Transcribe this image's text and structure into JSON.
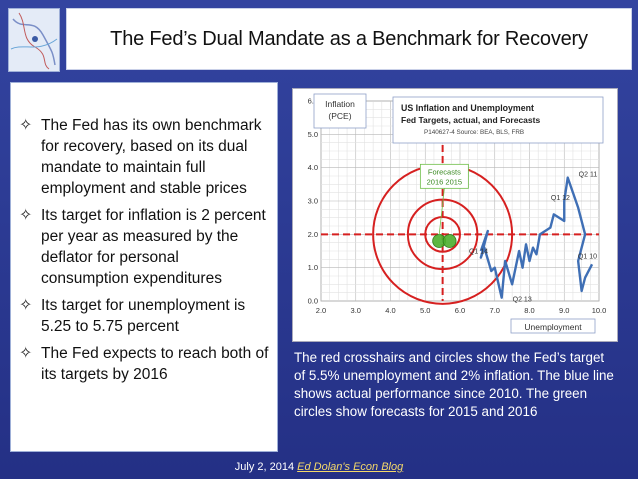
{
  "slide": {
    "title": "The Fed’s Dual Mandate as a Benchmark for Recovery",
    "bullets": [
      "The Fed has its own benchmark for recovery, based on its dual mandate to maintain full employment and stable prices",
      "Its target for inflation is 2 percent per year as measured by the deflator for personal consumption expenditures",
      "Its target for unemployment is 5.25 to 5.75 percent",
      "The Fed expects to reach both of its targets by 2016"
    ],
    "bullet_icon": "four-pointed-star-icon",
    "caption": "The red crosshairs and circles show the Fed’s target of 5.5% unemployment and 2% inflation. The blue line shows actual performance since 2010. The green circles show forecasts for 2015 and 2016",
    "footer": {
      "date": "July 2, 2014",
      "link_text": "Ed Dolan's Econ Blog"
    },
    "colors": {
      "background": "#2d3a8c",
      "link": "#f3d86a",
      "target": "#d62020",
      "series": "#3f6fb5",
      "forecast": "#4caf2e"
    }
  },
  "chart_data": {
    "type": "line",
    "title": "US Inflation and Unemployment",
    "subtitle": "Fed Targets, actual, and Forecasts",
    "source": "P140627-4 Source: BEA, BLS, FRB",
    "ylabel": "Inflation (PCE)",
    "xlabel": "Unemployment",
    "xlim": [
      2.0,
      10.0
    ],
    "ylim": [
      0.0,
      6.0
    ],
    "x_ticks": [
      "2.0",
      "3.0",
      "4.0",
      "5.0",
      "6.0",
      "7.0",
      "8.0",
      "9.0",
      "10.0"
    ],
    "y_ticks": [
      "0.0",
      "1.0",
      "2.0",
      "3.0",
      "4.0",
      "5.0",
      "6.0"
    ],
    "target": {
      "unemployment": 5.5,
      "inflation": 2.0,
      "circle_radii": [
        0.5,
        1.0,
        2.0
      ]
    },
    "forecast_label": "Forecasts",
    "forecasts": [
      {
        "label": "2016",
        "x": 5.4,
        "y": 1.8
      },
      {
        "label": "2015",
        "x": 5.7,
        "y": 1.8
      }
    ],
    "series": [
      {
        "x": [
          9.8,
          9.6,
          9.5,
          9.4,
          9.6,
          9.4,
          9.1,
          9.0,
          9.0,
          8.7,
          8.6,
          8.3,
          8.2,
          8.1,
          8.0,
          7.9,
          7.8,
          7.7,
          7.5,
          7.3,
          7.2,
          7.0,
          6.9,
          6.7,
          6.6,
          6.8,
          6.6
        ],
        "y": [
          1.1,
          0.7,
          0.3,
          1.2,
          2.0,
          2.8,
          3.7,
          3.0,
          2.4,
          2.6,
          2.2,
          2.0,
          1.4,
          1.6,
          1.2,
          1.7,
          1.0,
          1.5,
          0.5,
          1.2,
          0.1,
          1.0,
          0.9,
          1.6,
          1.3,
          2.1,
          1.5
        ]
      }
    ],
    "annotations": [
      {
        "text": "Q2 11",
        "x": 9.3,
        "y": 3.7
      },
      {
        "text": "Q1 12",
        "x": 8.5,
        "y": 3.0
      },
      {
        "text": "Q1 10",
        "x": 10.0,
        "y": 1.1
      },
      {
        "text": "Q2 13",
        "x": 7.4,
        "y": 0.1
      },
      {
        "text": "Q1 14",
        "x": 6.2,
        "y": 1.6
      }
    ]
  }
}
